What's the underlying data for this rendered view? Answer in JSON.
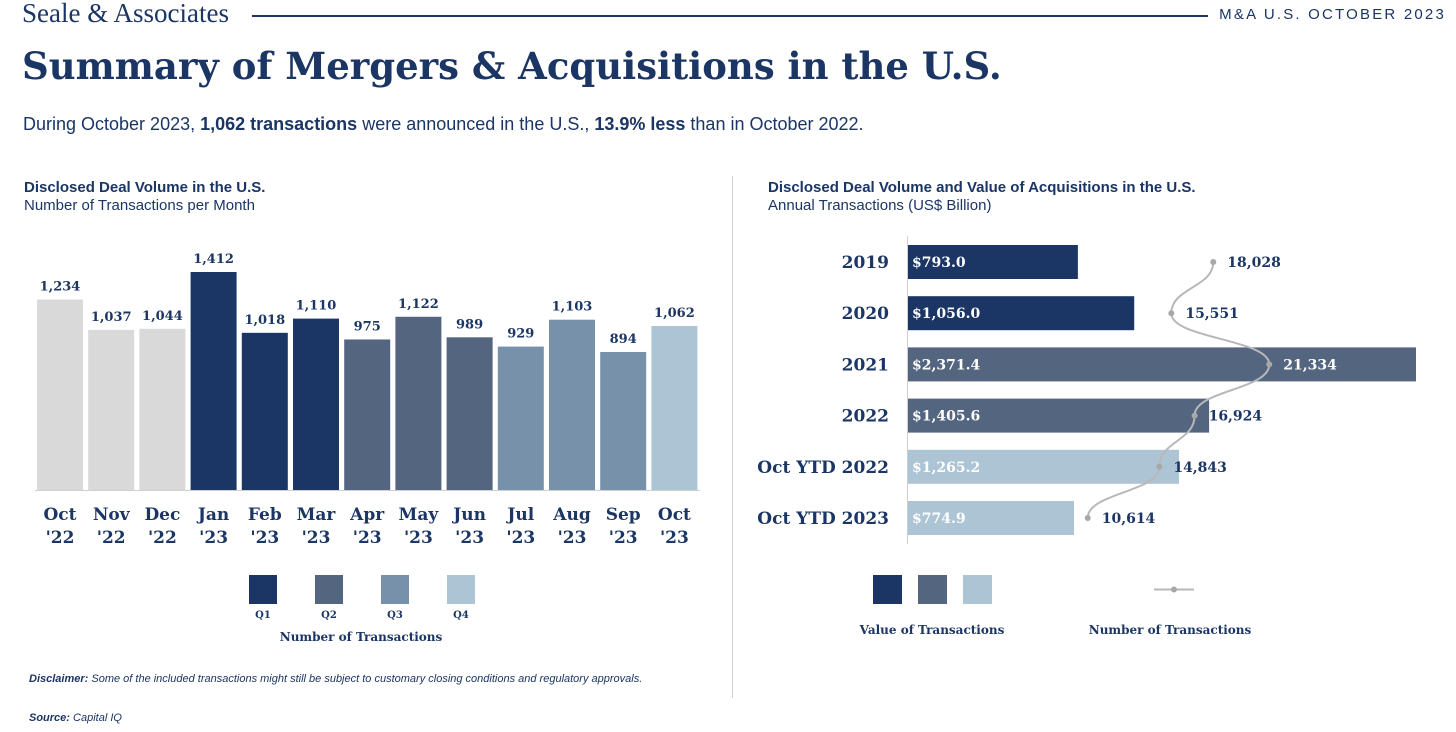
{
  "header": {
    "brand": "Seale & Associates",
    "report_label": "M&A U.S. OCTOBER 2023"
  },
  "title": "Summary of Mergers & Acquisitions in the U.S.",
  "intro": {
    "part1": "During October 2023, ",
    "bold1": "1,062 transactions",
    "part2": " were announced in the U.S., ",
    "bold2": "13.9% less",
    "part3": " than in October 2022."
  },
  "colors": {
    "q1": "#1b3564",
    "q2": "#53657f",
    "q3": "#7891ab",
    "q4": "#acc4d3",
    "prior": "#d9d9d9",
    "line": "#b8b8b8"
  },
  "chart_data": [
    {
      "type": "bar",
      "title": "Disclosed Deal Volume in the U.S.",
      "subtitle": "Number of Transactions per Month",
      "categories": [
        "Oct\n'22",
        "Nov\n'22",
        "Dec\n'22",
        "Jan\n'23",
        "Feb\n'23",
        "Mar\n'23",
        "Apr\n'23",
        "May\n'23",
        "Jun\n'23",
        "Jul\n'23",
        "Aug\n'23",
        "Sep\n'23",
        "Oct\n'23"
      ],
      "values": [
        1234,
        1037,
        1044,
        1412,
        1018,
        1110,
        975,
        1122,
        989,
        929,
        1103,
        894,
        1062
      ],
      "value_labels": [
        "1,234",
        "1,037",
        "1,044",
        "1,412",
        "1,018",
        "1,110",
        "975",
        "1,122",
        "989",
        "929",
        "1,103",
        "894",
        "1,062"
      ],
      "groups": [
        "prior",
        "prior",
        "prior",
        "q1",
        "q1",
        "q1",
        "q2",
        "q2",
        "q2",
        "q3",
        "q3",
        "q3",
        "q4"
      ],
      "ylim": [
        0,
        1412
      ],
      "grid": false,
      "legend": {
        "entries": [
          "Q1",
          "Q2",
          "Q3",
          "Q4"
        ],
        "title": "Number of Transactions",
        "placement": "bottom"
      }
    },
    {
      "type": "bar",
      "orientation": "horizontal",
      "title": "Disclosed Deal Volume and Value of Acquisitions in the U.S.",
      "subtitle": "Annual Transactions (US$ Billion)",
      "categories": [
        "2019",
        "2020",
        "2021",
        "2022",
        "Oct YTD 2022",
        "Oct YTD 2023"
      ],
      "values": [
        793.0,
        1056.0,
        2371.4,
        1405.6,
        1265.2,
        774.9
      ],
      "value_labels": [
        "$793.0",
        "$1,056.0",
        "$2,371.4",
        "$1,405.6",
        "$1,265.2",
        "$774.9"
      ],
      "groups": [
        "q1",
        "q1",
        "q2",
        "q2",
        "q4",
        "q4"
      ],
      "line_series": {
        "values": [
          18028,
          15551,
          21334,
          16924,
          14843,
          10614
        ],
        "value_labels": [
          "18,028",
          "15,551",
          "21,334",
          "16,924",
          "14,843",
          "10,614"
        ]
      },
      "xlim": [
        0,
        2371.4
      ],
      "line_range": [
        0,
        30000
      ],
      "grid": false,
      "legend": {
        "entries": [
          "Value of Transactions",
          "Number of Transactions"
        ],
        "placement": "bottom"
      }
    }
  ],
  "footer": {
    "disclaimer_label": "Disclaimer:",
    "disclaimer_text": " Some of the included transactions might still be subject to customary closing conditions and regulatory approvals.",
    "source_label": "Source:",
    "source_text": " Capital IQ"
  }
}
